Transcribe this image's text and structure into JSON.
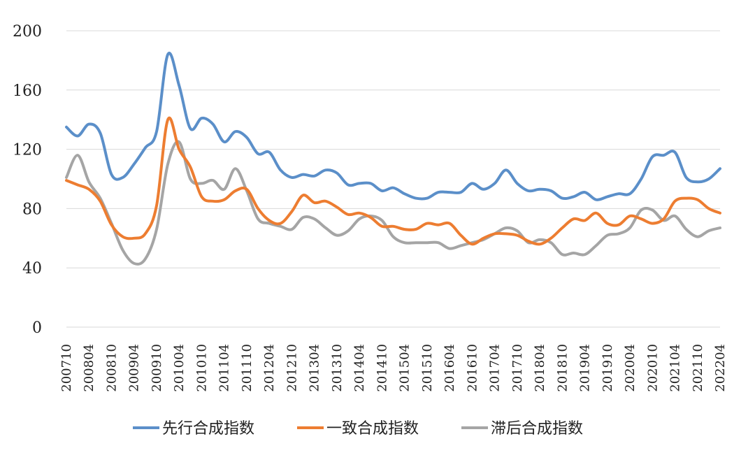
{
  "chart_data": {
    "type": "line",
    "title": "",
    "xlabel": "",
    "ylabel": "",
    "ylim": [
      0,
      200
    ],
    "yticks": [
      "0",
      "40",
      "80",
      "120",
      "160",
      "200"
    ],
    "x_tick_labels": [
      "200710",
      "200804",
      "200810",
      "200904",
      "200910",
      "201004",
      "201010",
      "201104",
      "201110",
      "201204",
      "201210",
      "201304",
      "201310",
      "201404",
      "201410",
      "201504",
      "201510",
      "201604",
      "201610",
      "201704",
      "201710",
      "201804",
      "201810",
      "201904",
      "201910",
      "202004",
      "202010",
      "202104",
      "202110",
      "202204"
    ],
    "grid": true,
    "legend_position": "bottom",
    "x": [
      "200710",
      "200801",
      "200804",
      "200807",
      "200810",
      "200901",
      "200904",
      "200907",
      "200910",
      "201001",
      "201004",
      "201007",
      "201010",
      "201101",
      "201104",
      "201107",
      "201110",
      "201201",
      "201204",
      "201207",
      "201210",
      "201301",
      "201304",
      "201307",
      "201310",
      "201401",
      "201404",
      "201407",
      "201410",
      "201501",
      "201504",
      "201507",
      "201510",
      "201601",
      "201604",
      "201607",
      "201610",
      "201701",
      "201704",
      "201707",
      "201710",
      "201801",
      "201804",
      "201807",
      "201810",
      "201901",
      "201904",
      "201907",
      "201910",
      "202001",
      "202004",
      "202007",
      "202010",
      "202101",
      "202104",
      "202107",
      "202110",
      "202201",
      "202204"
    ],
    "series": [
      {
        "name": "先行合成指数",
        "color": "#5b8fc9",
        "values": [
          135,
          129,
          137,
          131,
          103,
          101,
          110,
          121,
          132,
          184,
          163,
          134,
          141,
          137,
          125,
          132,
          128,
          117,
          118,
          106,
          101,
          103,
          102,
          106,
          104,
          96,
          97,
          97,
          92,
          94,
          90,
          87,
          87,
          91,
          91,
          91,
          97,
          93,
          97,
          106,
          97,
          92,
          93,
          92,
          87,
          88,
          91,
          86,
          88,
          90,
          90,
          100,
          115,
          116,
          118,
          101,
          98,
          100,
          107
        ]
      },
      {
        "name": "一致合成指数",
        "color": "#ed7d31",
        "values": [
          99,
          96,
          93,
          85,
          69,
          61,
          60,
          63,
          82,
          140,
          120,
          108,
          88,
          85,
          86,
          92,
          93,
          80,
          72,
          70,
          78,
          89,
          84,
          85,
          81,
          76,
          77,
          74,
          68,
          68,
          66,
          66,
          70,
          69,
          70,
          62,
          56,
          60,
          63,
          63,
          62,
          58,
          56,
          60,
          67,
          73,
          72,
          77,
          70,
          69,
          75,
          73,
          70,
          73,
          85,
          87,
          86,
          80,
          77
        ]
      },
      {
        "name": "滞后合成指数",
        "color": "#a5a5a5",
        "values": [
          101,
          116,
          98,
          87,
          70,
          52,
          43,
          46,
          66,
          110,
          125,
          100,
          97,
          99,
          93,
          107,
          92,
          73,
          70,
          68,
          66,
          74,
          73,
          67,
          62,
          65,
          73,
          75,
          72,
          61,
          57,
          57,
          57,
          57,
          53,
          55,
          57,
          59,
          63,
          67,
          65,
          57,
          59,
          57,
          49,
          50,
          49,
          55,
          62,
          63,
          67,
          79,
          79,
          72,
          75,
          66,
          61,
          65,
          67
        ]
      }
    ]
  }
}
